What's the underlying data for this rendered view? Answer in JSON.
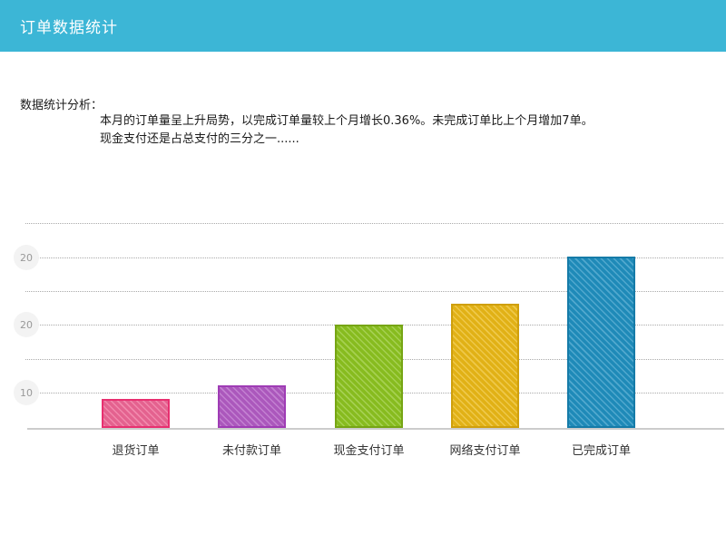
{
  "header": {
    "title": "订单数据统计"
  },
  "analysis": {
    "label": "数据统计分析：",
    "line1": "本月的订单量呈上升局势，以完成订单量较上个月增长0.36%。未完成订单比上个月增加7单。",
    "line2": "现金支付还是占总支付的三分之一......"
  },
  "chart_data": {
    "type": "bar",
    "title": "",
    "xlabel": "",
    "ylabel": "",
    "categories": [
      "退货订单",
      "未付款订单",
      "现金支付订单",
      "网络支付订单",
      "已完成订单"
    ],
    "values": [
      9,
      11,
      20,
      23,
      30
    ],
    "colors": [
      "#ed6695",
      "#b25cc4",
      "#8cc320",
      "#eab817",
      "#2090c0"
    ],
    "border_colors": [
      "#e83070",
      "#9f3cb5",
      "#76a514",
      "#cf9f0c",
      "#157ba8"
    ],
    "y_tick_labels": [
      "20",
      "20",
      "10"
    ],
    "ylim": [
      4.8,
      35
    ],
    "grid": "horizontal dotted gridlines, 6 lines, ticks on alternating lines",
    "legend": "none",
    "bar_texture": "diagonal hatch stripes"
  },
  "theme": {
    "header_bg": "#3cb6d6",
    "header_text": "#ffffff",
    "gridline_color": "#a9a9a9",
    "axis_line_color": "#cccccc",
    "tick_circle_bg": "#f3f3f3",
    "tick_text_color": "#999999",
    "body_text_color": "#1a1a1a"
  }
}
